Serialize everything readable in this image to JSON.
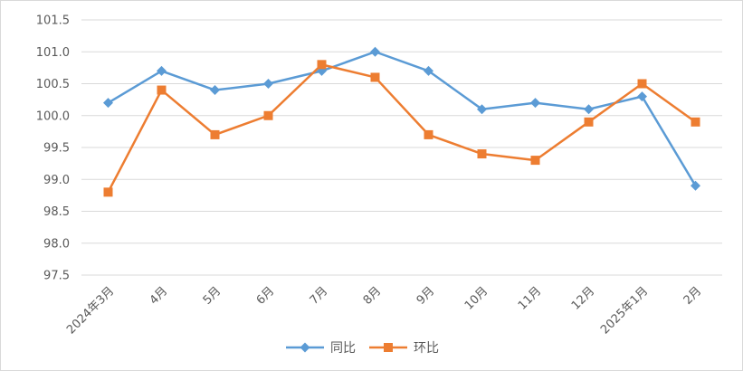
{
  "chart_data": {
    "type": "line",
    "categories": [
      "2024年3月",
      "4月",
      "5月",
      "6月",
      "7月",
      "8月",
      "9月",
      "10月",
      "11月",
      "12月",
      "2025年1月",
      "2月"
    ],
    "series": [
      {
        "name": "同比",
        "color": "#5b9bd5",
        "marker": "diamond",
        "values": [
          100.2,
          100.7,
          100.4,
          100.5,
          100.7,
          101.0,
          100.7,
          100.1,
          100.2,
          100.1,
          100.3,
          98.9
        ]
      },
      {
        "name": "环比",
        "color": "#ed7d31",
        "marker": "square",
        "values": [
          98.8,
          100.4,
          99.7,
          100.0,
          100.8,
          100.6,
          99.7,
          99.4,
          99.3,
          99.9,
          100.5,
          99.9
        ]
      }
    ],
    "ylim": [
      97.5,
      101.5
    ],
    "yticks": [
      "97.5",
      "98.0",
      "98.5",
      "99.0",
      "99.5",
      "100.0",
      "100.5",
      "101.0",
      "101.5"
    ],
    "grid": true,
    "legend_position": "bottom"
  }
}
